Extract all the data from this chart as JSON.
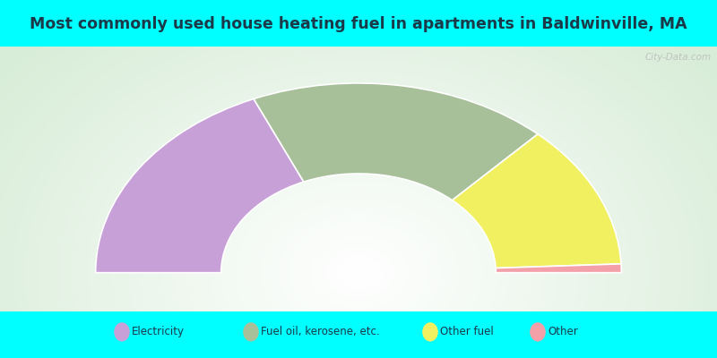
{
  "title": "Most commonly used house heating fuel in apartments in Baldwinville, MA",
  "title_color": "#1a3a4a",
  "title_fontsize": 12.5,
  "segments": [
    {
      "label": "Electricity",
      "value": 3,
      "color": "#c8a0d8"
    },
    {
      "label": "Fuel oil, kerosene, etc.",
      "value": 3,
      "color": "#a8c09a"
    },
    {
      "label": "Other fuel",
      "value": 2,
      "color": "#f0f060"
    },
    {
      "label": "Other",
      "value": 0.12,
      "color": "#f4a0a8"
    }
  ],
  "legend_labels": [
    "Electricity",
    "Fuel oil, kerosene, etc.",
    "Other fuel",
    "Other"
  ],
  "legend_colors": [
    "#c8a0d8",
    "#a8c09a",
    "#f0f060",
    "#f4a0a8"
  ],
  "watermark": "City-Data.com",
  "outer_r": 0.88,
  "inner_r": 0.46
}
